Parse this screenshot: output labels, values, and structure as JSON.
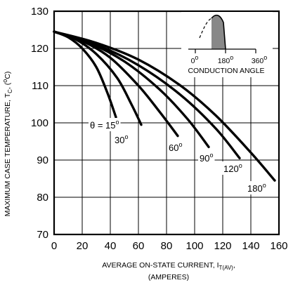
{
  "chart_data": {
    "type": "line",
    "xlabel_main": "AVERAGE ON-STATE  CURRENT, I",
    "xlabel_sub": "T(AV)",
    "xlabel_suffix": ",",
    "xlabel_line2": "(AMPERES)",
    "ylabel_main": "MAXIMUM CASE TEMPERATURE, T",
    "ylabel_sub": "C",
    "ylabel_suffix1": ", (",
    "ylabel_deg": "o",
    "ylabel_suffix2": "C)",
    "xlim": [
      0,
      160
    ],
    "ylim": [
      70,
      130
    ],
    "x_ticks": [
      "0",
      "20",
      "40",
      "60",
      "80",
      "100",
      "120",
      "140",
      "160"
    ],
    "y_ticks": [
      "70",
      "80",
      "90",
      "100",
      "110",
      "120",
      "130"
    ],
    "grid": true,
    "series": [
      {
        "name": "θ = 15",
        "label_suffix": "o",
        "points": [
          [
            0,
            124.5
          ],
          [
            10,
            123
          ],
          [
            20,
            120
          ],
          [
            30,
            115
          ],
          [
            38,
            108
          ],
          [
            44,
            101.5
          ]
        ]
      },
      {
        "name": "30",
        "label_suffix": "o",
        "points": [
          [
            0,
            124.5
          ],
          [
            15,
            122.5
          ],
          [
            30,
            118.5
          ],
          [
            45,
            112
          ],
          [
            55,
            105
          ],
          [
            62,
            99.5
          ]
        ]
      },
      {
        "name": "60",
        "label_suffix": "o",
        "points": [
          [
            0,
            124.5
          ],
          [
            20,
            122
          ],
          [
            40,
            117.5
          ],
          [
            60,
            110
          ],
          [
            75,
            103
          ],
          [
            88,
            96.5
          ]
        ]
      },
      {
        "name": "90",
        "label_suffix": "o",
        "points": [
          [
            0,
            124.5
          ],
          [
            25,
            121.5
          ],
          [
            50,
            116.5
          ],
          [
            75,
            109
          ],
          [
            95,
            101
          ],
          [
            110,
            93.5
          ]
        ]
      },
      {
        "name": "120",
        "label_suffix": "o",
        "points": [
          [
            0,
            124.5
          ],
          [
            30,
            121
          ],
          [
            60,
            115.5
          ],
          [
            90,
            107.5
          ],
          [
            115,
            98.5
          ],
          [
            132,
            90.5
          ]
        ]
      },
      {
        "name": "180",
        "label_suffix": "o",
        "points": [
          [
            0,
            124.5
          ],
          [
            30,
            121.5
          ],
          [
            60,
            117
          ],
          [
            90,
            110
          ],
          [
            115,
            102
          ],
          [
            140,
            92
          ],
          [
            157,
            84.5
          ]
        ]
      }
    ],
    "inset": {
      "tick_labels": [
        "0",
        "180",
        "360"
      ],
      "tick_suffix": "o",
      "caption": "CONDUCTION ANGLE"
    }
  }
}
